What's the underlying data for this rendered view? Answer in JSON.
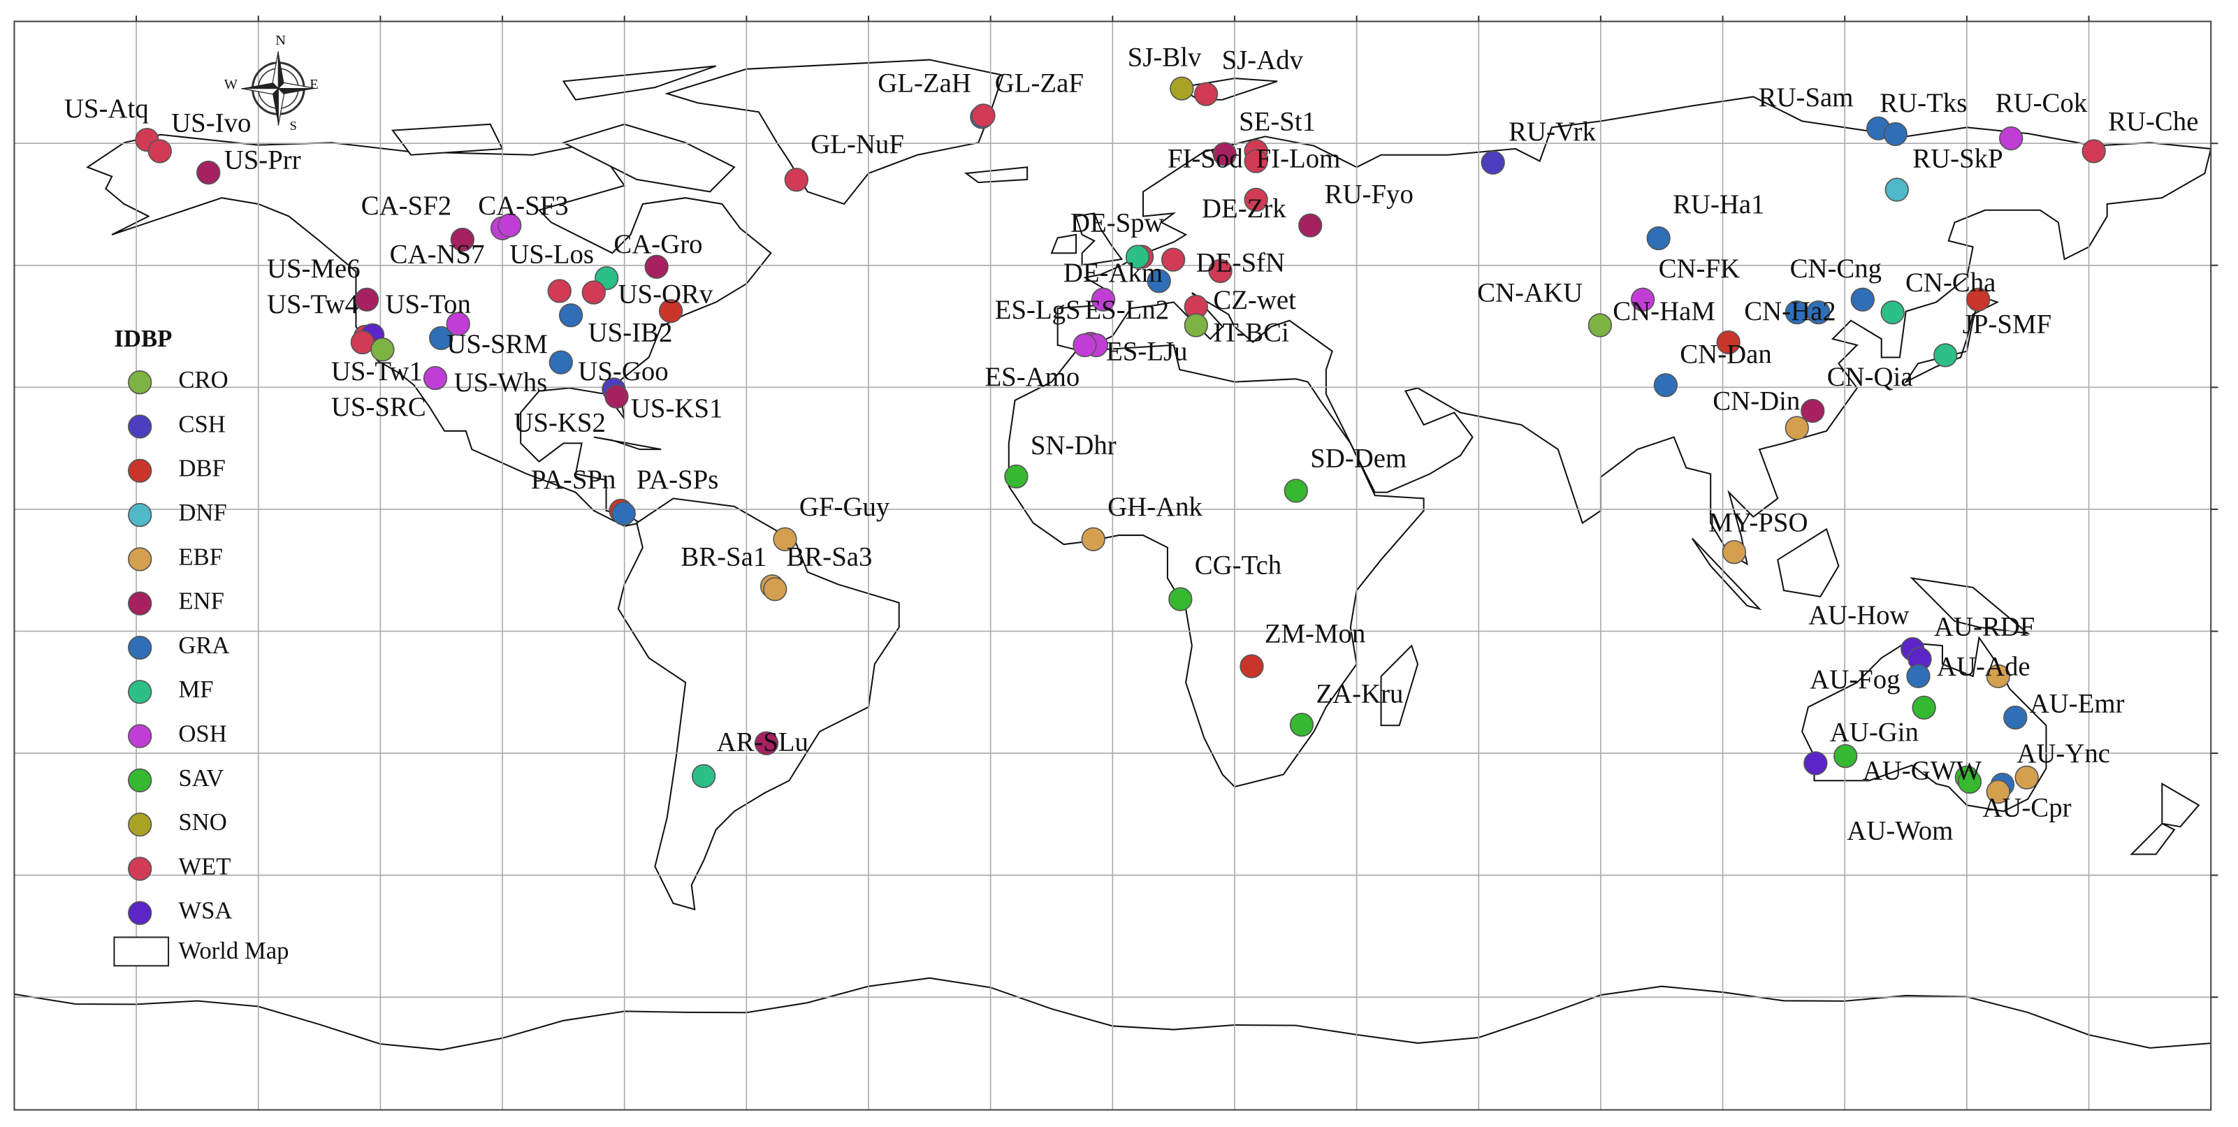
{
  "compass": {
    "n": "N",
    "e": "E",
    "w": "W",
    "s": "S"
  },
  "legend": {
    "title": "IDBP",
    "basemap": "World Map",
    "classes": [
      {
        "name": "CRO",
        "color": "#7cb342"
      },
      {
        "name": "CSH",
        "color": "#4b3fbf"
      },
      {
        "name": "DBF",
        "color": "#c9352a"
      },
      {
        "name": "DNF",
        "color": "#4fb8c9"
      },
      {
        "name": "EBF",
        "color": "#d4a04f"
      },
      {
        "name": "ENF",
        "color": "#a5215f"
      },
      {
        "name": "GRA",
        "color": "#2e6fb8"
      },
      {
        "name": "MF",
        "color": "#2cbf86"
      },
      {
        "name": "OSH",
        "color": "#c13ed6"
      },
      {
        "name": "SAV",
        "color": "#36b830"
      },
      {
        "name": "SNO",
        "color": "#a8a324"
      },
      {
        "name": "WET",
        "color": "#d13b55"
      },
      {
        "name": "WSA",
        "color": "#5b25c8"
      }
    ]
  },
  "sites": [
    {
      "label": "US-Atq",
      "class": "WET"
    },
    {
      "label": "US-Ivo",
      "class": "WET"
    },
    {
      "label": "US-Prr",
      "class": "ENF"
    },
    {
      "label": "CA-SF2",
      "class": "ENF"
    },
    {
      "label": "CA-SF3",
      "class": "OSH"
    },
    {
      "label": "CA-NS7",
      "class": "OSH"
    },
    {
      "label": "US-Los",
      "class": "WET"
    },
    {
      "label": "CA-Gro",
      "class": "MF"
    },
    {
      "label": "US-Me6",
      "class": "ENF"
    },
    {
      "label": "US-Tw4",
      "class": "WET"
    },
    {
      "label": "US-Ton",
      "class": "WSA"
    },
    {
      "label": "US-Tw1",
      "class": "WET"
    },
    {
      "label": "US-SRC",
      "class": "OSH"
    },
    {
      "label": "US-SRM",
      "class": "GRA"
    },
    {
      "label": "US-Whs",
      "class": "OSH"
    },
    {
      "label": "US-ORv",
      "class": "WET"
    },
    {
      "label": "US-IB2",
      "class": "GRA"
    },
    {
      "label": "US-Goo",
      "class": "GRA"
    },
    {
      "label": "US-KS2",
      "class": "CSH"
    },
    {
      "label": "US-KS1",
      "class": "ENF"
    },
    {
      "label": "PA-SPn",
      "class": "DBF"
    },
    {
      "label": "PA-SPs",
      "class": "GRA"
    },
    {
      "label": "GF-Guy",
      "class": "EBF"
    },
    {
      "label": "BR-Sa1",
      "class": "EBF"
    },
    {
      "label": "BR-Sa3",
      "class": "EBF"
    },
    {
      "label": "AR-SLu",
      "class": "ENF"
    },
    {
      "label": "GL-ZaH",
      "class": "GRA"
    },
    {
      "label": "GL-ZaF",
      "class": "WET"
    },
    {
      "label": "GL-NuF",
      "class": "WET"
    },
    {
      "label": "SJ-Blv",
      "class": "SNO"
    },
    {
      "label": "SJ-Adv",
      "class": "WET"
    },
    {
      "label": "SE-St1",
      "class": "WET"
    },
    {
      "label": "FI-Sod",
      "class": "ENF"
    },
    {
      "label": "FI-Lom",
      "class": "WET"
    },
    {
      "label": "RU-Fyo",
      "class": "ENF"
    },
    {
      "label": "DE-Zrk",
      "class": "WET"
    },
    {
      "label": "DE-Spw",
      "class": "WET"
    },
    {
      "label": "DE-Akm",
      "class": "WET"
    },
    {
      "label": "DE-SfN",
      "class": "WET"
    },
    {
      "label": "ES-LgS",
      "class": "OSH"
    },
    {
      "label": "ES-Ln2",
      "class": "OSH"
    },
    {
      "label": "ES-Amo",
      "class": "OSH"
    },
    {
      "label": "ES-LJu",
      "class": "OSH"
    },
    {
      "label": "CZ-wet",
      "class": "WET"
    },
    {
      "label": "IT-BCi",
      "class": "CRO"
    },
    {
      "label": "RU-Vrk",
      "class": "CSH"
    },
    {
      "label": "RU-Sam",
      "class": "GRA"
    },
    {
      "label": "RU-Tks",
      "class": "GRA"
    },
    {
      "label": "RU-Cok",
      "class": "OSH"
    },
    {
      "label": "RU-Che",
      "class": "WET"
    },
    {
      "label": "RU-SkP",
      "class": "DNF"
    },
    {
      "label": "RU-Ha1",
      "class": "GRA"
    },
    {
      "label": "CN-AKU",
      "class": "CRO"
    },
    {
      "label": "CN-FK",
      "class": "OSH"
    },
    {
      "label": "CN-HaM",
      "class": "GRA"
    },
    {
      "label": "CN-Ha2",
      "class": "GRA"
    },
    {
      "label": "CN-Cng",
      "class": "GRA"
    },
    {
      "label": "CN-Cha",
      "class": "MF"
    },
    {
      "label": "JP-SMF",
      "class": "MF"
    },
    {
      "label": "CN-Dan",
      "class": "GRA"
    },
    {
      "label": "CN-Din",
      "class": "EBF"
    },
    {
      "label": "CN-Qia",
      "class": "ENF"
    },
    {
      "label": "MY-PSO",
      "class": "EBF"
    },
    {
      "label": "SN-Dhr",
      "class": "SAV"
    },
    {
      "label": "GH-Ank",
      "class": "EBF"
    },
    {
      "label": "SD-Dem",
      "class": "SAV"
    },
    {
      "label": "CG-Tch",
      "class": "SAV"
    },
    {
      "label": "ZM-Mon",
      "class": "DBF"
    },
    {
      "label": "ZA-Kru",
      "class": "SAV"
    },
    {
      "label": "AU-How",
      "class": "WSA"
    },
    {
      "label": "AU-RDF",
      "class": "WSA"
    },
    {
      "label": "AU-Ade",
      "class": "EBF"
    },
    {
      "label": "AU-Fog",
      "class": "SAV"
    },
    {
      "label": "AU-Emr",
      "class": "GRA"
    },
    {
      "label": "AU-Gin",
      "class": "WSA"
    },
    {
      "label": "AU-GWW",
      "class": "SAV"
    },
    {
      "label": "AU-Ync",
      "class": "GRA"
    },
    {
      "label": "AU-Cpr",
      "class": "SAV"
    },
    {
      "label": "AU-Wom",
      "class": "EBF"
    },
    {
      "label": null,
      "class": "ENF"
    },
    {
      "label": null,
      "class": "DBF"
    },
    {
      "label": null,
      "class": "MF"
    },
    {
      "label": null,
      "class": "DBF"
    },
    {
      "label": null,
      "class": "DBF"
    },
    {
      "label": null,
      "class": "CRO"
    },
    {
      "label": null,
      "class": "SAV"
    },
    {
      "label": null,
      "class": "EBF"
    },
    {
      "label": null,
      "class": "GRA"
    },
    {
      "label": null,
      "class": "MF"
    },
    {
      "label": null,
      "class": "GRA"
    }
  ]
}
